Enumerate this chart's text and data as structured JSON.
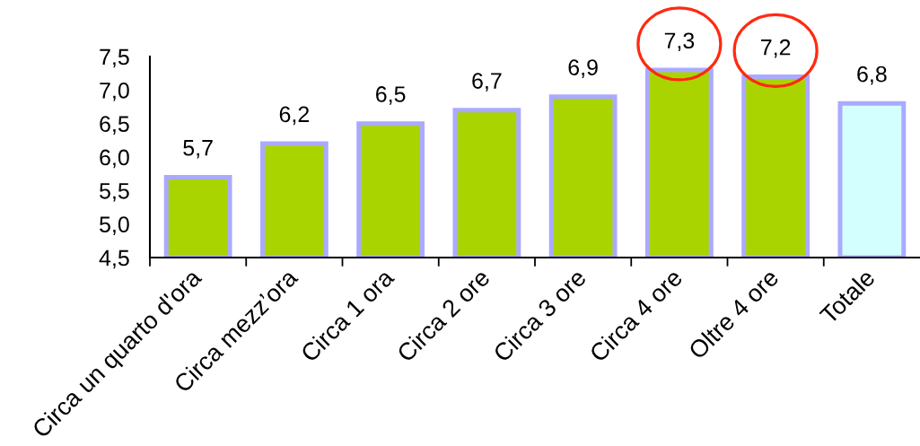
{
  "chart_data": {
    "type": "bar",
    "categories": [
      "Circa un quarto d'ora",
      "Circa mezz’ora",
      "Circa 1 ora",
      "Circa 2 ore",
      "Circa 3 ore",
      "Circa 4 ore",
      "Oltre 4 ore",
      "Totale"
    ],
    "values": [
      5.7,
      6.2,
      6.5,
      6.7,
      6.9,
      7.3,
      7.2,
      6.8
    ],
    "colors": [
      "#aad400",
      "#aad400",
      "#aad400",
      "#aad400",
      "#aad400",
      "#aad400",
      "#aad400",
      "#d4ffff"
    ],
    "value_labels": [
      "5,7",
      "6,2",
      "6,5",
      "6,7",
      "6,9",
      "7,3",
      "7,2",
      "6,8"
    ],
    "ylim": [
      4.5,
      7.5
    ],
    "yticks": [
      {
        "value": 4.5,
        "label": "4,5"
      },
      {
        "value": 5.0,
        "label": "5,0"
      },
      {
        "value": 5.5,
        "label": "5,5"
      },
      {
        "value": 6.0,
        "label": "6,0"
      },
      {
        "value": 6.5,
        "label": "6,5"
      },
      {
        "value": 7.0,
        "label": "7,0"
      },
      {
        "value": 7.5,
        "label": "7,5"
      }
    ],
    "grid": false
  }
}
